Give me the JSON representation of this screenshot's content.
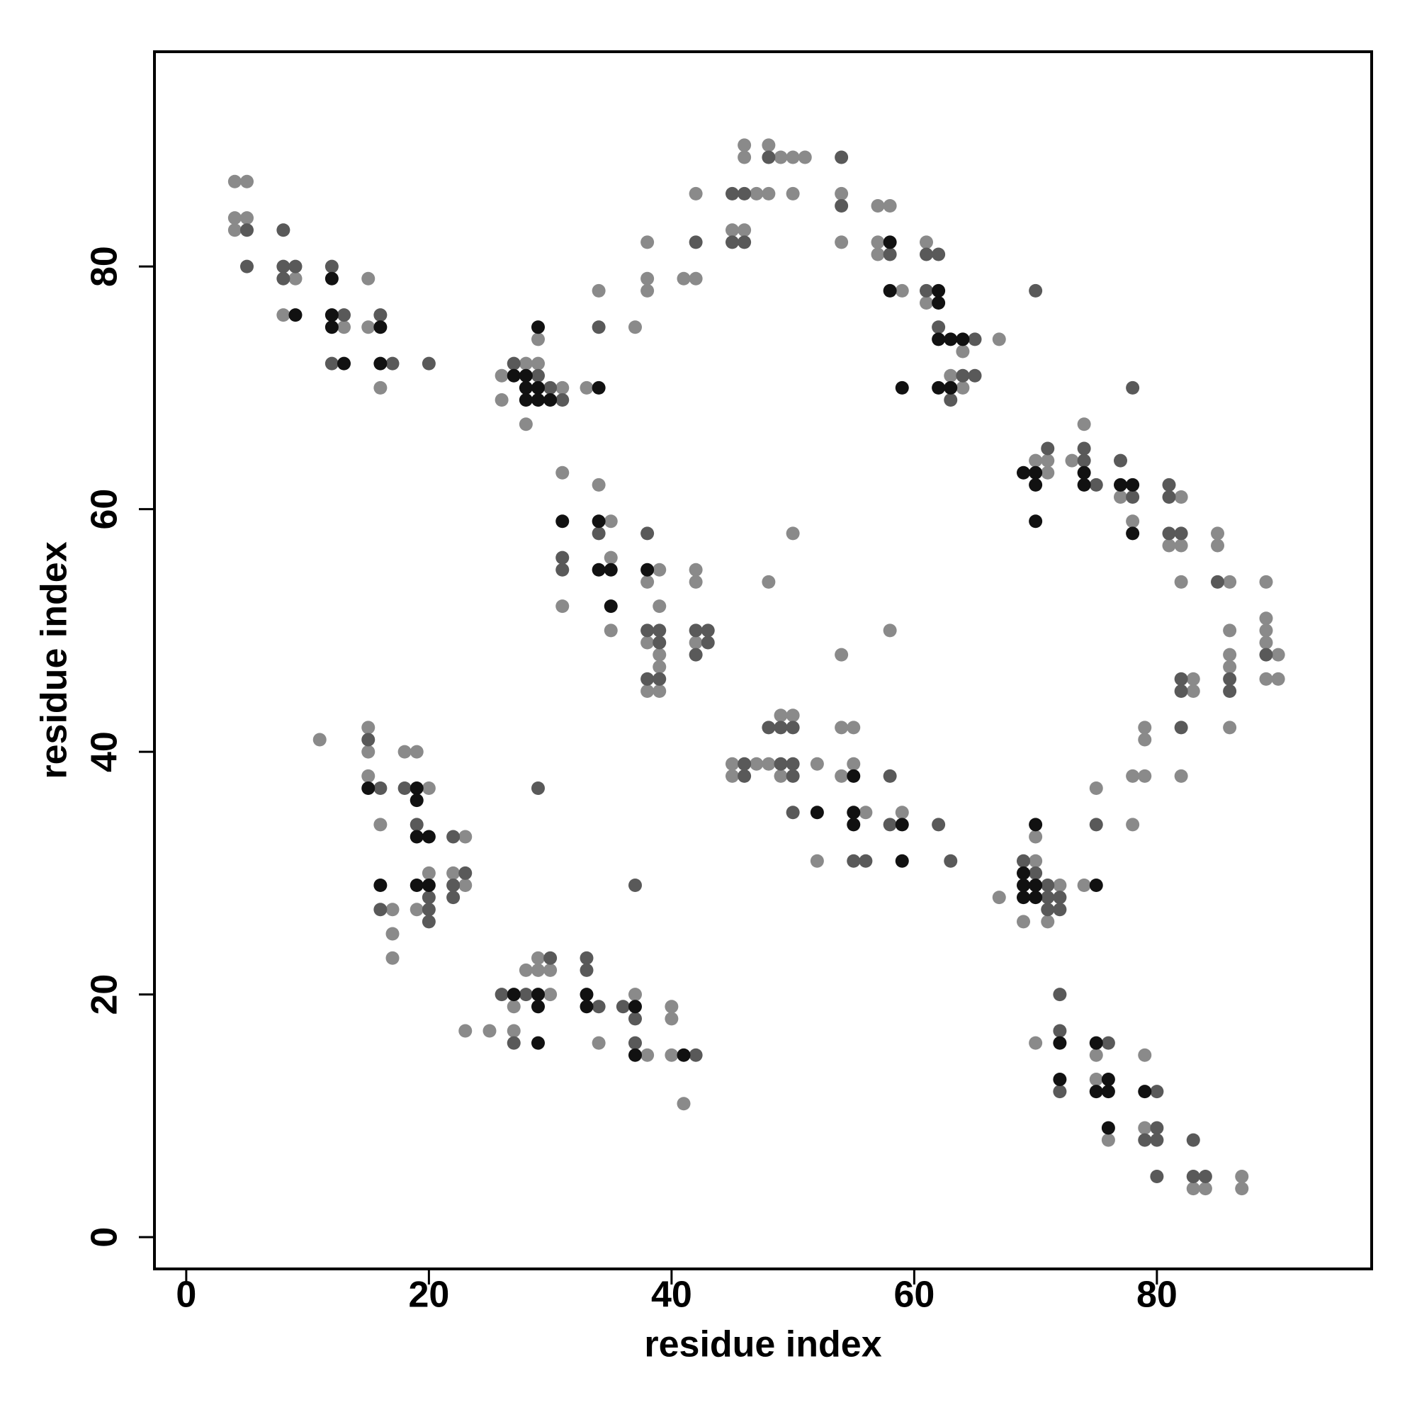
{
  "chart_data": {
    "type": "scatter",
    "x_label": "residue index",
    "y_label": "residue index",
    "xlim": [
      -2.62,
      97.7
    ],
    "ylim": [
      -2.62,
      97.7
    ],
    "xticks": [
      0,
      20,
      40,
      60,
      80
    ],
    "yticks": [
      0,
      20,
      40,
      60,
      80
    ],
    "grid": false,
    "series": [
      {
        "color": "#8a8a8a",
        "x": [
          4,
          5,
          4,
          5,
          4,
          9,
          8,
          13,
          15,
          15,
          16,
          26,
          26,
          28,
          28,
          29,
          29,
          31,
          33,
          34,
          37,
          38,
          38,
          38,
          41,
          42,
          42,
          45,
          46,
          47,
          48,
          46,
          46,
          48,
          49,
          50,
          51,
          50,
          54,
          54,
          57,
          58,
          57,
          57,
          59,
          61,
          61,
          67,
          64,
          63,
          64,
          70,
          71,
          71,
          73,
          74,
          77,
          78,
          82,
          81,
          82,
          82,
          85,
          85,
          86,
          86,
          86,
          86,
          86,
          89,
          89,
          89,
          89,
          90,
          89,
          90,
          83,
          83,
          82,
          79,
          79,
          78,
          79,
          78,
          75,
          74,
          31,
          31,
          34,
          35,
          35,
          35,
          39,
          38,
          39,
          38,
          39,
          39,
          38,
          39,
          42,
          42,
          42,
          48,
          50,
          54,
          58,
          45,
          45,
          47,
          48,
          49,
          50,
          49,
          52,
          52,
          54,
          55,
          54,
          55,
          56,
          59,
          67,
          70,
          72,
          69,
          71,
          70,
          70,
          75,
          75,
          76,
          79,
          79,
          83,
          84,
          87,
          87,
          11,
          15,
          15,
          15,
          18,
          19,
          20,
          16,
          23,
          20,
          22,
          23,
          17,
          19,
          17,
          17,
          23,
          25,
          27,
          27,
          28,
          29,
          29,
          30,
          30,
          34,
          37,
          38,
          40,
          40,
          40,
          41
        ],
        "values": [
          87,
          87,
          84,
          84,
          83,
          79,
          76,
          75,
          79,
          75,
          70,
          71,
          69,
          72,
          67,
          74,
          72,
          70,
          70,
          78,
          75,
          82,
          79,
          78,
          79,
          79,
          86,
          83,
          83,
          86,
          86,
          90,
          89,
          90,
          89,
          89,
          89,
          86,
          86,
          82,
          85,
          85,
          82,
          81,
          78,
          82,
          77,
          74,
          73,
          71,
          70,
          64,
          64,
          63,
          64,
          67,
          61,
          59,
          61,
          57,
          57,
          54,
          58,
          57,
          54,
          50,
          48,
          47,
          42,
          54,
          51,
          50,
          49,
          48,
          46,
          46,
          46,
          45,
          38,
          42,
          41,
          38,
          38,
          34,
          37,
          29,
          63,
          52,
          62,
          59,
          56,
          50,
          55,
          54,
          52,
          49,
          48,
          47,
          45,
          45,
          55,
          54,
          49,
          54,
          58,
          48,
          50,
          39,
          38,
          39,
          39,
          43,
          43,
          38,
          39,
          31,
          42,
          42,
          38,
          39,
          35,
          35,
          28,
          31,
          29,
          26,
          26,
          33,
          16,
          15,
          13,
          8,
          15,
          9,
          4,
          4,
          5,
          4,
          41,
          42,
          40,
          38,
          40,
          40,
          37,
          34,
          33,
          30,
          30,
          29,
          27,
          27,
          25,
          23,
          17,
          17,
          19,
          17,
          22,
          22,
          23,
          22,
          20,
          16,
          20,
          15,
          19,
          18,
          15,
          11
        ]
      },
      {
        "color": "#595959",
        "x": [
          5,
          5,
          8,
          8,
          9,
          8,
          12,
          13,
          12,
          16,
          17,
          20,
          27,
          29,
          30,
          31,
          34,
          42,
          45,
          46,
          45,
          46,
          48,
          54,
          54,
          58,
          61,
          62,
          61,
          62,
          65,
          64,
          65,
          63,
          70,
          71,
          74,
          74,
          75,
          77,
          78,
          78,
          81,
          81,
          81,
          82,
          85,
          86,
          86,
          89,
          82,
          82,
          82,
          75,
          31,
          31,
          34,
          38,
          38,
          39,
          39,
          38,
          39,
          42,
          43,
          43,
          42,
          46,
          46,
          48,
          49,
          50,
          49,
          50,
          50,
          50,
          55,
          56,
          58,
          58,
          62,
          63,
          69,
          70,
          71,
          71,
          72,
          71,
          72,
          72,
          72,
          72,
          76,
          80,
          80,
          79,
          80,
          83,
          80,
          83,
          84,
          15,
          16,
          18,
          19,
          22,
          23,
          22,
          22,
          20,
          16,
          20,
          20,
          29,
          37,
          26,
          28,
          27,
          30,
          33,
          33,
          34,
          36,
          37,
          37,
          42
        ],
        "values": [
          83,
          80,
          83,
          80,
          80,
          79,
          80,
          76,
          72,
          76,
          72,
          72,
          72,
          71,
          70,
          69,
          75,
          82,
          86,
          86,
          82,
          82,
          89,
          89,
          85,
          81,
          81,
          81,
          78,
          75,
          74,
          71,
          71,
          69,
          78,
          65,
          65,
          64,
          62,
          64,
          61,
          70,
          62,
          61,
          58,
          58,
          54,
          46,
          45,
          48,
          46,
          45,
          42,
          34,
          56,
          55,
          58,
          58,
          50,
          50,
          49,
          46,
          46,
          50,
          50,
          49,
          48,
          39,
          38,
          42,
          42,
          42,
          39,
          39,
          38,
          35,
          31,
          31,
          38,
          34,
          34,
          31,
          31,
          30,
          29,
          28,
          28,
          27,
          27,
          20,
          17,
          12,
          16,
          12,
          9,
          8,
          8,
          8,
          5,
          5,
          5,
          41,
          37,
          37,
          34,
          33,
          30,
          29,
          28,
          28,
          27,
          27,
          26,
          37,
          29,
          20,
          20,
          16,
          23,
          23,
          22,
          19,
          19,
          18,
          16,
          15
        ]
      },
      {
        "color": "#111111",
        "x": [
          9,
          12,
          12,
          12,
          13,
          16,
          16,
          27,
          28,
          28,
          28,
          29,
          29,
          29,
          30,
          34,
          58,
          58,
          62,
          62,
          62,
          63,
          64,
          62,
          63,
          59,
          69,
          70,
          70,
          70,
          74,
          74,
          77,
          78,
          78,
          75,
          31,
          34,
          34,
          35,
          35,
          38,
          52,
          55,
          55,
          55,
          59,
          59,
          69,
          69,
          70,
          69,
          70,
          70,
          72,
          72,
          75,
          76,
          75,
          76,
          76,
          79,
          15,
          19,
          19,
          19,
          20,
          16,
          19,
          20,
          27,
          29,
          29,
          29,
          33,
          33,
          37,
          37,
          41
        ],
        "values": [
          76,
          79,
          76,
          75,
          72,
          75,
          72,
          71,
          71,
          70,
          69,
          75,
          70,
          69,
          69,
          70,
          82,
          78,
          78,
          77,
          74,
          74,
          74,
          70,
          70,
          70,
          63,
          63,
          62,
          59,
          63,
          62,
          62,
          62,
          58,
          29,
          59,
          59,
          55,
          55,
          52,
          55,
          35,
          38,
          35,
          34,
          34,
          31,
          30,
          29,
          29,
          28,
          28,
          34,
          16,
          13,
          16,
          13,
          12,
          12,
          9,
          12,
          37,
          37,
          36,
          33,
          33,
          29,
          29,
          29,
          20,
          20,
          19,
          16,
          20,
          19,
          19,
          15,
          15
        ]
      }
    ]
  }
}
